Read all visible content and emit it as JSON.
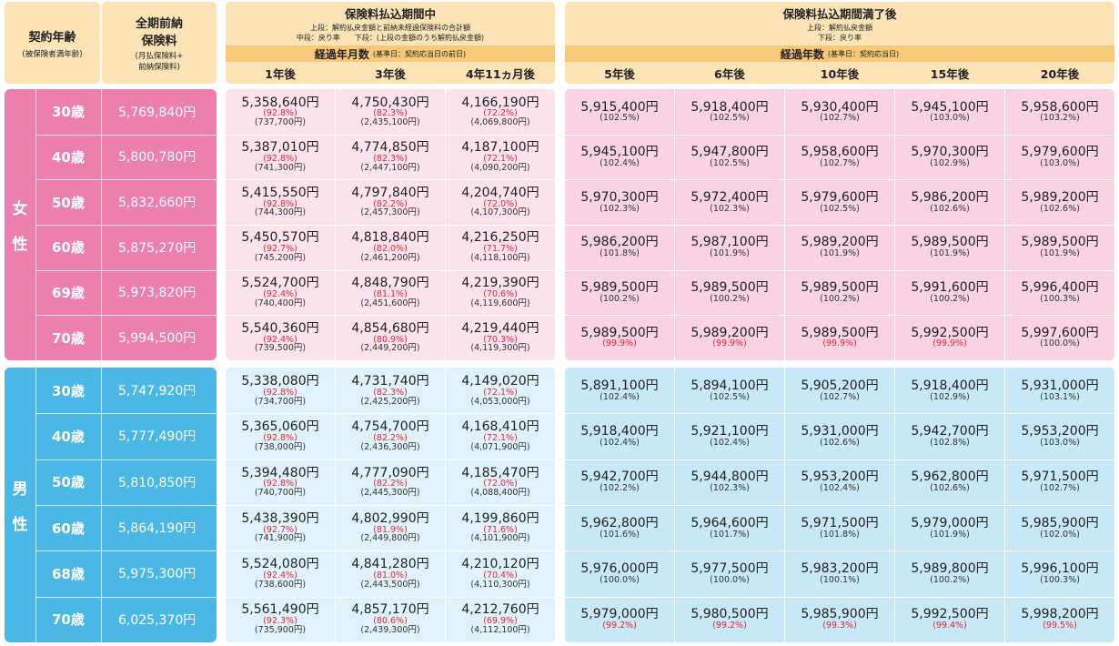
{
  "header": {
    "age_title": "契約年齢",
    "age_sub": "(被保険者満年齢)",
    "total_title_1": "全期前納",
    "total_title_2": "保険料",
    "total_sub_1": "(月払保険料+",
    "total_sub_2": "前納保険料)",
    "during": {
      "title": "保険料払込期間中",
      "note1": "上段：解約払戻金額と前納未経過保険料の合計額",
      "note2": "中段：戻り率　　下段：(上段の金額のうち解約払戻金額)",
      "elapsed_label": "経過年月数",
      "elapsed_note": "(基準日：契約応当日の前日)",
      "cols": [
        "1年後",
        "3年後",
        "4年11ヵ月後"
      ]
    },
    "after": {
      "title": "保険料払込期間満了後",
      "note1": "上段：解約払戻金額",
      "note2": "下段：戻り率",
      "elapsed_label": "経過年数",
      "elapsed_note": "(基準日：契約応当日)",
      "cols": [
        "5年後",
        "6年後",
        "10年後",
        "15年後",
        "20年後"
      ]
    }
  },
  "colors": {
    "female_accent": "#ec7fae",
    "male_accent": "#4ab7e6",
    "female_light": "#fde3ee",
    "male_light": "#dff2fb",
    "header": "#fbe3b6",
    "header_dark": "#f7c87a",
    "red_rate": "#e8232d"
  },
  "female": {
    "label_1": "女",
    "label_2": "性",
    "rows": [
      {
        "age": "30歳",
        "total": "5,769,840円",
        "during": [
          [
            "5,358,640円",
            "(92.8%)",
            "(737,700円)"
          ],
          [
            "4,750,430円",
            "(82.3%)",
            "(2,435,100円)"
          ],
          [
            "4,166,190円",
            "(72.2%)",
            "(4,069,800円)"
          ]
        ],
        "after": [
          [
            "5,915,400円",
            "(102.5%)",
            false
          ],
          [
            "5,918,400円",
            "(102.5%)",
            false
          ],
          [
            "5,930,400円",
            "(102.7%)",
            false
          ],
          [
            "5,945,100円",
            "(103.0%)",
            false
          ],
          [
            "5,958,600円",
            "(103.2%)",
            false
          ]
        ]
      },
      {
        "age": "40歳",
        "total": "5,800,780円",
        "during": [
          [
            "5,387,010円",
            "(92.8%)",
            "(741,300円)"
          ],
          [
            "4,774,850円",
            "(82.3%)",
            "(2,447,100円)"
          ],
          [
            "4,187,100円",
            "(72.1%)",
            "(4,090,200円)"
          ]
        ],
        "after": [
          [
            "5,945,100円",
            "(102.4%)",
            false
          ],
          [
            "5,947,800円",
            "(102.5%)",
            false
          ],
          [
            "5,958,600円",
            "(102.7%)",
            false
          ],
          [
            "5,970,300円",
            "(102.9%)",
            false
          ],
          [
            "5,979,600円",
            "(103.0%)",
            false
          ]
        ]
      },
      {
        "age": "50歳",
        "total": "5,832,660円",
        "during": [
          [
            "5,415,550円",
            "(92.8%)",
            "(744,300円)"
          ],
          [
            "4,797,840円",
            "(82.2%)",
            "(2,457,300円)"
          ],
          [
            "4,204,740円",
            "(72.0%)",
            "(4,107,300円)"
          ]
        ],
        "after": [
          [
            "5,970,300円",
            "(102.3%)",
            false
          ],
          [
            "5,972,400円",
            "(102.3%)",
            false
          ],
          [
            "5,979,600円",
            "(102.5%)",
            false
          ],
          [
            "5,986,200円",
            "(102.6%)",
            false
          ],
          [
            "5,989,200円",
            "(102.6%)",
            false
          ]
        ]
      },
      {
        "age": "60歳",
        "total": "5,875,270円",
        "during": [
          [
            "5,450,570円",
            "(92.7%)",
            "(745,200円)"
          ],
          [
            "4,818,840円",
            "(82.0%)",
            "(2,461,200円)"
          ],
          [
            "4,216,250円",
            "(71.7%)",
            "(4,118,100円)"
          ]
        ],
        "after": [
          [
            "5,986,200円",
            "(101.8%)",
            false
          ],
          [
            "5,987,100円",
            "(101.9%)",
            false
          ],
          [
            "5,989,200円",
            "(101.9%)",
            false
          ],
          [
            "5,989,500円",
            "(101.9%)",
            false
          ],
          [
            "5,989,500円",
            "(101.9%)",
            false
          ]
        ]
      },
      {
        "age": "69歳",
        "total": "5,973,820円",
        "during": [
          [
            "5,524,700円",
            "(92.4%)",
            "(740,400円)"
          ],
          [
            "4,848,790円",
            "(81.1%)",
            "(2,451,600円)"
          ],
          [
            "4,219,390円",
            "(70.6%)",
            "(4,119,600円)"
          ]
        ],
        "after": [
          [
            "5,989,500円",
            "(100.2%)",
            false
          ],
          [
            "5,989,500円",
            "(100.2%)",
            false
          ],
          [
            "5,989,500円",
            "(100.2%)",
            false
          ],
          [
            "5,991,600円",
            "(100.2%)",
            false
          ],
          [
            "5,996,400円",
            "(100.3%)",
            false
          ]
        ]
      },
      {
        "age": "70歳",
        "total": "5,994,500円",
        "during": [
          [
            "5,540,360円",
            "(92.4%)",
            "(739,500円)"
          ],
          [
            "4,854,680円",
            "(80.9%)",
            "(2,449,200円)"
          ],
          [
            "4,219,440円",
            "(70.3%)",
            "(4,119,300円)"
          ]
        ],
        "after": [
          [
            "5,989,500円",
            "(99.9%)",
            true
          ],
          [
            "5,989,200円",
            "(99.9%)",
            true
          ],
          [
            "5,989,500円",
            "(99.9%)",
            true
          ],
          [
            "5,992,500円",
            "(99.9%)",
            true
          ],
          [
            "5,997,600円",
            "(100.0%)",
            false
          ]
        ]
      }
    ]
  },
  "male": {
    "label_1": "男",
    "label_2": "性",
    "rows": [
      {
        "age": "30歳",
        "total": "5,747,920円",
        "during": [
          [
            "5,338,080円",
            "(92.8%)",
            "(734,700円)"
          ],
          [
            "4,731,740円",
            "(82.3%)",
            "(2,425,200円)"
          ],
          [
            "4,149,020円",
            "(72.1%)",
            "(4,053,000円)"
          ]
        ],
        "after": [
          [
            "5,891,100円",
            "(102.4%)",
            false
          ],
          [
            "5,894,100円",
            "(102.5%)",
            false
          ],
          [
            "5,905,200円",
            "(102.7%)",
            false
          ],
          [
            "5,918,400円",
            "(102.9%)",
            false
          ],
          [
            "5,931,000円",
            "(103.1%)",
            false
          ]
        ]
      },
      {
        "age": "40歳",
        "total": "5,777,490円",
        "during": [
          [
            "5,365,060円",
            "(92.8%)",
            "(738,000円)"
          ],
          [
            "4,754,700円",
            "(82.2%)",
            "(2,436,300円)"
          ],
          [
            "4,168,410円",
            "(72.1%)",
            "(4,071,900円)"
          ]
        ],
        "after": [
          [
            "5,918,400円",
            "(102.4%)",
            false
          ],
          [
            "5,921,100円",
            "(102.4%)",
            false
          ],
          [
            "5,931,000円",
            "(102.6%)",
            false
          ],
          [
            "5,942,700円",
            "(102.8%)",
            false
          ],
          [
            "5,953,200円",
            "(103.0%)",
            false
          ]
        ]
      },
      {
        "age": "50歳",
        "total": "5,810,850円",
        "during": [
          [
            "5,394,480円",
            "(92.8%)",
            "(740,700円)"
          ],
          [
            "4,777,090円",
            "(82.2%)",
            "(2,445,300円)"
          ],
          [
            "4,185,470円",
            "(72.0%)",
            "(4,088,400円)"
          ]
        ],
        "after": [
          [
            "5,942,700円",
            "(102.2%)",
            false
          ],
          [
            "5,944,800円",
            "(102.3%)",
            false
          ],
          [
            "5,953,200円",
            "(102.4%)",
            false
          ],
          [
            "5,962,800円",
            "(102.6%)",
            false
          ],
          [
            "5,971,500円",
            "(102.7%)",
            false
          ]
        ]
      },
      {
        "age": "60歳",
        "total": "5,864,190円",
        "during": [
          [
            "5,438,390円",
            "(92.7%)",
            "(741,900円)"
          ],
          [
            "4,802,990円",
            "(81.9%)",
            "(2,449,800円)"
          ],
          [
            "4,199,860円",
            "(71.6%)",
            "(4,101,900円)"
          ]
        ],
        "after": [
          [
            "5,962,800円",
            "(101.6%)",
            false
          ],
          [
            "5,964,600円",
            "(101.7%)",
            false
          ],
          [
            "5,971,500円",
            "(101.8%)",
            false
          ],
          [
            "5,979,000円",
            "(101.9%)",
            false
          ],
          [
            "5,985,900円",
            "(102.0%)",
            false
          ]
        ]
      },
      {
        "age": "68歳",
        "total": "5,975,300円",
        "during": [
          [
            "5,524,080円",
            "(92.4%)",
            "(738,600円)"
          ],
          [
            "4,841,280円",
            "(81.0%)",
            "(2,443,500円)"
          ],
          [
            "4,210,120円",
            "(70.4%)",
            "(4,110,300円)"
          ]
        ],
        "after": [
          [
            "5,976,000円",
            "(100.0%)",
            false
          ],
          [
            "5,977,500円",
            "(100.0%)",
            false
          ],
          [
            "5,983,200円",
            "(100.1%)",
            false
          ],
          [
            "5,989,800円",
            "(100.2%)",
            false
          ],
          [
            "5,996,100円",
            "(100.3%)",
            false
          ]
        ]
      },
      {
        "age": "70歳",
        "total": "6,025,370円",
        "during": [
          [
            "5,561,490円",
            "(92.3%)",
            "(735,900円)"
          ],
          [
            "4,857,170円",
            "(80.6%)",
            "(2,439,300円)"
          ],
          [
            "4,212,760円",
            "(69.9%)",
            "(4,112,100円)"
          ]
        ],
        "after": [
          [
            "5,979,000円",
            "(99.2%)",
            true
          ],
          [
            "5,980,500円",
            "(99.2%)",
            true
          ],
          [
            "5,985,900円",
            "(99.3%)",
            true
          ],
          [
            "5,992,500円",
            "(99.4%)",
            true
          ],
          [
            "5,998,200円",
            "(99.5%)",
            true
          ]
        ]
      }
    ]
  }
}
